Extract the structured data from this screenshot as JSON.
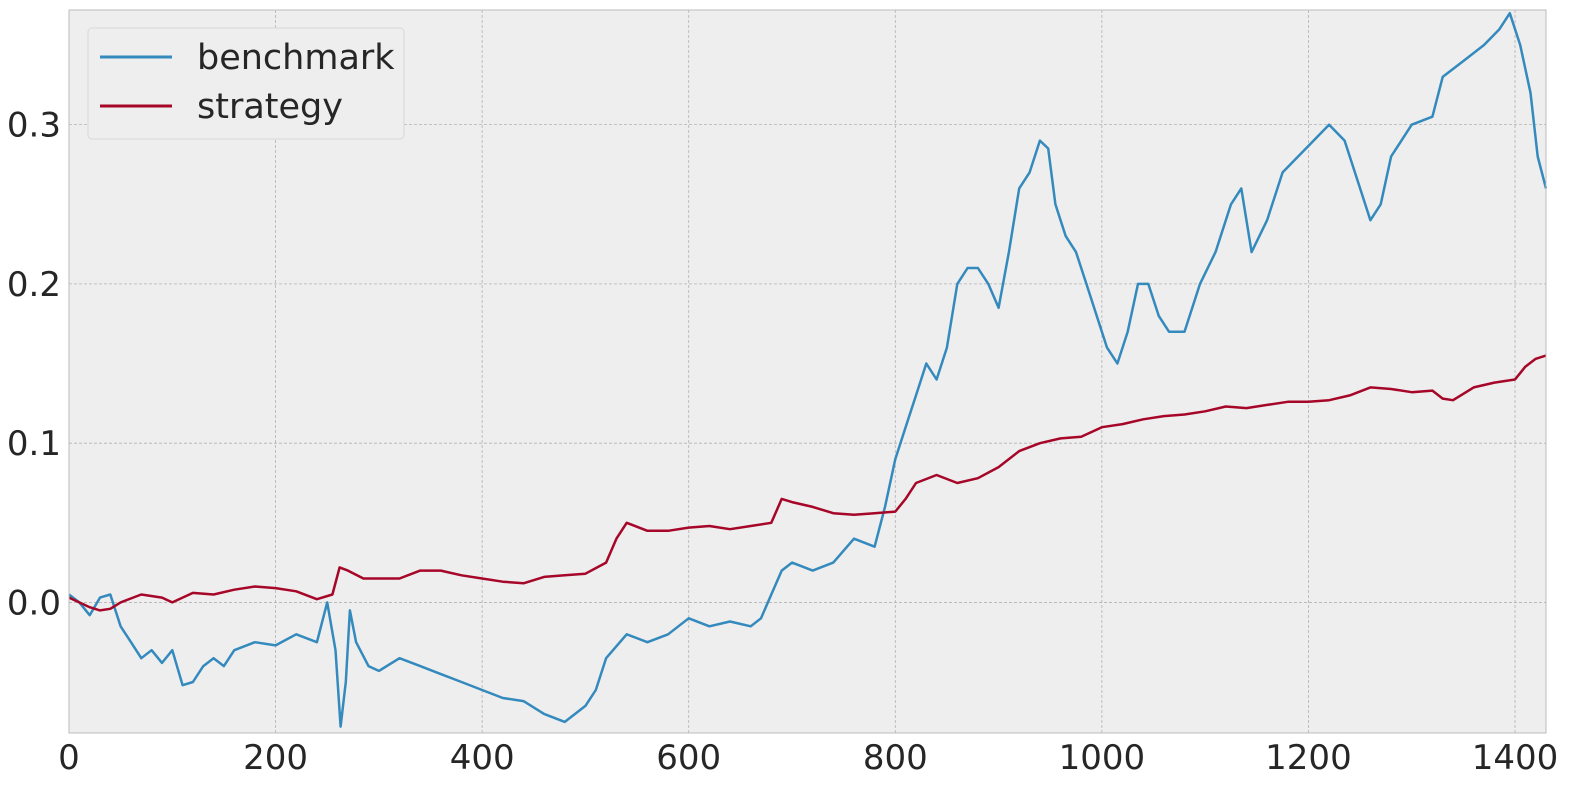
{
  "chart_data": {
    "type": "line",
    "title": "",
    "xlabel": "",
    "ylabel": "",
    "xlim": [
      0,
      1430
    ],
    "ylim": [
      -0.082,
      0.372
    ],
    "grid": true,
    "legend_placement": "top-left",
    "x_ticks": [
      0,
      200,
      400,
      600,
      800,
      1000,
      1200,
      1400
    ],
    "x_tick_labels": [
      "0",
      "200",
      "400",
      "600",
      "800",
      "1000",
      "1200",
      "1400"
    ],
    "y_ticks": [
      0.0,
      0.1,
      0.2,
      0.3
    ],
    "y_tick_labels": [
      "0.0",
      "0.1",
      "0.2",
      "0.3"
    ],
    "series": [
      {
        "name": "benchmark",
        "color": "#348ABD",
        "points": [
          [
            0,
            0.005
          ],
          [
            10,
            0.0
          ],
          [
            20,
            -0.008
          ],
          [
            30,
            0.003
          ],
          [
            40,
            0.005
          ],
          [
            50,
            -0.015
          ],
          [
            60,
            -0.025
          ],
          [
            70,
            -0.035
          ],
          [
            80,
            -0.03
          ],
          [
            90,
            -0.038
          ],
          [
            100,
            -0.03
          ],
          [
            110,
            -0.052
          ],
          [
            120,
            -0.05
          ],
          [
            130,
            -0.04
          ],
          [
            140,
            -0.035
          ],
          [
            150,
            -0.04
          ],
          [
            160,
            -0.03
          ],
          [
            180,
            -0.025
          ],
          [
            200,
            -0.027
          ],
          [
            220,
            -0.02
          ],
          [
            240,
            -0.025
          ],
          [
            250,
            0.0
          ],
          [
            258,
            -0.03
          ],
          [
            263,
            -0.078
          ],
          [
            268,
            -0.05
          ],
          [
            272,
            -0.005
          ],
          [
            278,
            -0.025
          ],
          [
            290,
            -0.04
          ],
          [
            300,
            -0.043
          ],
          [
            320,
            -0.035
          ],
          [
            340,
            -0.04
          ],
          [
            360,
            -0.045
          ],
          [
            380,
            -0.05
          ],
          [
            400,
            -0.055
          ],
          [
            420,
            -0.06
          ],
          [
            440,
            -0.062
          ],
          [
            460,
            -0.07
          ],
          [
            480,
            -0.075
          ],
          [
            500,
            -0.065
          ],
          [
            510,
            -0.055
          ],
          [
            520,
            -0.035
          ],
          [
            540,
            -0.02
          ],
          [
            560,
            -0.025
          ],
          [
            580,
            -0.02
          ],
          [
            600,
            -0.01
          ],
          [
            620,
            -0.015
          ],
          [
            640,
            -0.012
          ],
          [
            660,
            -0.015
          ],
          [
            670,
            -0.01
          ],
          [
            680,
            0.005
          ],
          [
            690,
            0.02
          ],
          [
            700,
            0.025
          ],
          [
            720,
            0.02
          ],
          [
            740,
            0.025
          ],
          [
            760,
            0.04
          ],
          [
            780,
            0.035
          ],
          [
            790,
            0.06
          ],
          [
            800,
            0.09
          ],
          [
            810,
            0.11
          ],
          [
            820,
            0.13
          ],
          [
            830,
            0.15
          ],
          [
            840,
            0.14
          ],
          [
            850,
            0.16
          ],
          [
            860,
            0.2
          ],
          [
            870,
            0.21
          ],
          [
            880,
            0.21
          ],
          [
            890,
            0.2
          ],
          [
            900,
            0.185
          ],
          [
            910,
            0.22
          ],
          [
            920,
            0.26
          ],
          [
            930,
            0.27
          ],
          [
            940,
            0.29
          ],
          [
            948,
            0.285
          ],
          [
            955,
            0.25
          ],
          [
            965,
            0.23
          ],
          [
            975,
            0.22
          ],
          [
            985,
            0.2
          ],
          [
            995,
            0.18
          ],
          [
            1005,
            0.16
          ],
          [
            1015,
            0.15
          ],
          [
            1025,
            0.17
          ],
          [
            1035,
            0.2
          ],
          [
            1045,
            0.2
          ],
          [
            1055,
            0.18
          ],
          [
            1065,
            0.17
          ],
          [
            1080,
            0.17
          ],
          [
            1095,
            0.2
          ],
          [
            1110,
            0.22
          ],
          [
            1125,
            0.25
          ],
          [
            1135,
            0.26
          ],
          [
            1145,
            0.22
          ],
          [
            1160,
            0.24
          ],
          [
            1175,
            0.27
          ],
          [
            1190,
            0.28
          ],
          [
            1205,
            0.29
          ],
          [
            1220,
            0.3
          ],
          [
            1235,
            0.29
          ],
          [
            1250,
            0.26
          ],
          [
            1260,
            0.24
          ],
          [
            1270,
            0.25
          ],
          [
            1280,
            0.28
          ],
          [
            1300,
            0.3
          ],
          [
            1320,
            0.305
          ],
          [
            1330,
            0.33
          ],
          [
            1350,
            0.34
          ],
          [
            1370,
            0.35
          ],
          [
            1385,
            0.36
          ],
          [
            1395,
            0.37
          ],
          [
            1405,
            0.35
          ],
          [
            1415,
            0.32
          ],
          [
            1422,
            0.28
          ],
          [
            1430,
            0.26
          ]
        ]
      },
      {
        "name": "strategy",
        "color": "#A60628",
        "points": [
          [
            0,
            0.003
          ],
          [
            10,
            0.0
          ],
          [
            20,
            -0.003
          ],
          [
            30,
            -0.005
          ],
          [
            40,
            -0.004
          ],
          [
            50,
            0.0
          ],
          [
            70,
            0.005
          ],
          [
            90,
            0.003
          ],
          [
            100,
            0.0
          ],
          [
            120,
            0.006
          ],
          [
            140,
            0.005
          ],
          [
            160,
            0.008
          ],
          [
            180,
            0.01
          ],
          [
            200,
            0.009
          ],
          [
            220,
            0.007
          ],
          [
            240,
            0.002
          ],
          [
            255,
            0.005
          ],
          [
            262,
            0.022
          ],
          [
            270,
            0.02
          ],
          [
            285,
            0.015
          ],
          [
            300,
            0.015
          ],
          [
            320,
            0.015
          ],
          [
            340,
            0.02
          ],
          [
            360,
            0.02
          ],
          [
            380,
            0.017
          ],
          [
            400,
            0.015
          ],
          [
            420,
            0.013
          ],
          [
            440,
            0.012
          ],
          [
            460,
            0.016
          ],
          [
            480,
            0.017
          ],
          [
            500,
            0.018
          ],
          [
            520,
            0.025
          ],
          [
            530,
            0.04
          ],
          [
            540,
            0.05
          ],
          [
            560,
            0.045
          ],
          [
            580,
            0.045
          ],
          [
            600,
            0.047
          ],
          [
            620,
            0.048
          ],
          [
            640,
            0.046
          ],
          [
            660,
            0.048
          ],
          [
            680,
            0.05
          ],
          [
            690,
            0.065
          ],
          [
            700,
            0.063
          ],
          [
            720,
            0.06
          ],
          [
            740,
            0.056
          ],
          [
            760,
            0.055
          ],
          [
            780,
            0.056
          ],
          [
            800,
            0.057
          ],
          [
            810,
            0.065
          ],
          [
            820,
            0.075
          ],
          [
            840,
            0.08
          ],
          [
            860,
            0.075
          ],
          [
            880,
            0.078
          ],
          [
            900,
            0.085
          ],
          [
            920,
            0.095
          ],
          [
            940,
            0.1
          ],
          [
            960,
            0.103
          ],
          [
            980,
            0.104
          ],
          [
            1000,
            0.11
          ],
          [
            1020,
            0.112
          ],
          [
            1040,
            0.115
          ],
          [
            1060,
            0.117
          ],
          [
            1080,
            0.118
          ],
          [
            1100,
            0.12
          ],
          [
            1120,
            0.123
          ],
          [
            1140,
            0.122
          ],
          [
            1160,
            0.124
          ],
          [
            1180,
            0.126
          ],
          [
            1200,
            0.126
          ],
          [
            1220,
            0.127
          ],
          [
            1240,
            0.13
          ],
          [
            1260,
            0.135
          ],
          [
            1280,
            0.134
          ],
          [
            1300,
            0.132
          ],
          [
            1320,
            0.133
          ],
          [
            1330,
            0.128
          ],
          [
            1340,
            0.127
          ],
          [
            1360,
            0.135
          ],
          [
            1380,
            0.138
          ],
          [
            1400,
            0.14
          ],
          [
            1410,
            0.148
          ],
          [
            1420,
            0.153
          ],
          [
            1430,
            0.155
          ]
        ]
      }
    ]
  }
}
